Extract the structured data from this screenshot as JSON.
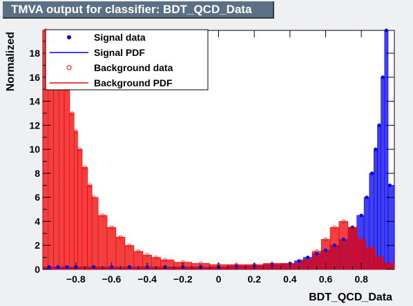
{
  "title": "TMVA output for classifier: BDT_QCD_Data",
  "chart_data": {
    "type": "bar",
    "xlabel": "BDT_QCD_Data",
    "ylabel": "Normalized",
    "xlim": [
      -0.985,
      0.985
    ],
    "ylim": [
      0,
      19.9
    ],
    "x_ticks": [
      -0.8,
      -0.6,
      -0.4,
      -0.2,
      0,
      0.2,
      0.4,
      0.6,
      0.8
    ],
    "x_tick_labels": [
      "−0.8",
      "−0.6",
      "−0.4",
      "−0.2",
      "0",
      "0.2",
      "0.4",
      "0.6",
      "0.8"
    ],
    "y_ticks": [
      0,
      2,
      4,
      6,
      8,
      10,
      12,
      14,
      16,
      18
    ],
    "y_tick_labels": [
      "0",
      "2",
      "4",
      "6",
      "8",
      "10",
      "12",
      "14",
      "16",
      "18"
    ],
    "legend_position": "top-left",
    "series": [
      {
        "name": "Signal data",
        "kind": "points",
        "color": "#0000ee",
        "x": [
          -0.95,
          -0.9,
          -0.85,
          -0.8,
          -0.7,
          -0.6,
          -0.5,
          -0.4,
          -0.3,
          -0.2,
          -0.1,
          0.0,
          0.1,
          0.2,
          0.3,
          0.4,
          0.45,
          0.5,
          0.55,
          0.6,
          0.65,
          0.7,
          0.75,
          0.8,
          0.83,
          0.86,
          0.88,
          0.9,
          0.92,
          0.94,
          0.96
        ],
        "y": [
          0.2,
          0.2,
          0.2,
          0.2,
          0.2,
          0.2,
          0.2,
          0.2,
          0.2,
          0.2,
          0.2,
          0.2,
          0.3,
          0.3,
          0.4,
          0.5,
          0.7,
          1.0,
          1.3,
          1.6,
          2.0,
          2.5,
          3.5,
          4.5,
          6.0,
          8.0,
          10.0,
          12.0,
          16.0,
          20.0,
          7.0
        ]
      },
      {
        "name": "Signal PDF",
        "kind": "histogram",
        "color": "#0000ee",
        "x": [
          -0.95,
          -0.9,
          -0.85,
          -0.8,
          -0.7,
          -0.6,
          -0.5,
          -0.4,
          -0.3,
          -0.2,
          -0.1,
          0.0,
          0.1,
          0.2,
          0.3,
          0.4,
          0.45,
          0.5,
          0.55,
          0.6,
          0.65,
          0.7,
          0.75,
          0.8,
          0.83,
          0.86,
          0.88,
          0.9,
          0.92,
          0.94,
          0.96
        ],
        "y": [
          0.2,
          0.2,
          0.2,
          0.2,
          0.2,
          0.2,
          0.2,
          0.2,
          0.2,
          0.2,
          0.2,
          0.2,
          0.3,
          0.3,
          0.4,
          0.5,
          0.7,
          1.0,
          1.3,
          1.6,
          2.0,
          2.5,
          3.5,
          4.5,
          6.0,
          8.0,
          10.0,
          12.0,
          16.0,
          20.0,
          7.0
        ]
      },
      {
        "name": "Background data",
        "kind": "points",
        "color": "#ee0000",
        "x": [
          -0.97,
          -0.94,
          -0.91,
          -0.88,
          -0.85,
          -0.82,
          -0.8,
          -0.78,
          -0.75,
          -0.72,
          -0.7,
          -0.65,
          -0.6,
          -0.55,
          -0.5,
          -0.45,
          -0.4,
          -0.35,
          -0.3,
          -0.2,
          -0.1,
          0.0,
          0.1,
          0.2,
          0.3,
          0.4,
          0.5,
          0.55,
          0.6,
          0.65,
          0.7,
          0.75,
          0.8,
          0.85,
          0.9,
          0.95
        ],
        "y": [
          20.0,
          19.0,
          18.0,
          17.0,
          15.0,
          13.0,
          11.5,
          10.0,
          8.5,
          7.0,
          6.0,
          4.5,
          3.5,
          2.7,
          2.0,
          1.5,
          1.2,
          1.0,
          0.8,
          0.6,
          0.5,
          0.4,
          0.4,
          0.4,
          0.5,
          0.5,
          0.8,
          1.5,
          2.5,
          3.5,
          4.0,
          3.5,
          2.5,
          1.8,
          1.0,
          0.5
        ]
      },
      {
        "name": "Background PDF",
        "kind": "histogram",
        "color": "#ee0000",
        "x": [
          -0.97,
          -0.94,
          -0.91,
          -0.88,
          -0.85,
          -0.82,
          -0.8,
          -0.78,
          -0.75,
          -0.72,
          -0.7,
          -0.65,
          -0.6,
          -0.55,
          -0.5,
          -0.45,
          -0.4,
          -0.35,
          -0.3,
          -0.2,
          -0.1,
          0.0,
          0.1,
          0.2,
          0.3,
          0.4,
          0.5,
          0.55,
          0.6,
          0.65,
          0.7,
          0.75,
          0.8,
          0.85,
          0.9,
          0.95
        ],
        "y": [
          20.0,
          19.0,
          18.0,
          17.0,
          15.0,
          13.0,
          11.5,
          10.0,
          8.5,
          7.0,
          6.0,
          4.5,
          3.5,
          2.7,
          2.0,
          1.5,
          1.2,
          1.0,
          0.8,
          0.6,
          0.5,
          0.4,
          0.4,
          0.4,
          0.5,
          0.5,
          0.8,
          1.5,
          2.5,
          3.5,
          4.0,
          3.5,
          2.5,
          1.8,
          1.0,
          0.5
        ]
      }
    ]
  }
}
